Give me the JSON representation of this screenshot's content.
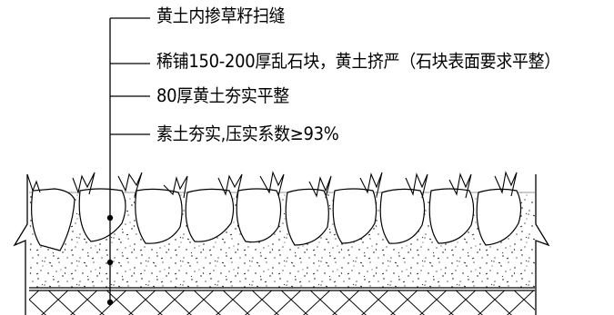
{
  "diagram": {
    "layers": [
      {
        "label": "黄土内掺草籽扫缝"
      },
      {
        "label": "稀铺150-200厚乱石块，黄土挤严（石块表面要求平整）"
      },
      {
        "label": "80厚黄土夯实平整"
      },
      {
        "label": "素土夯实,压实系数≥93%"
      }
    ]
  }
}
